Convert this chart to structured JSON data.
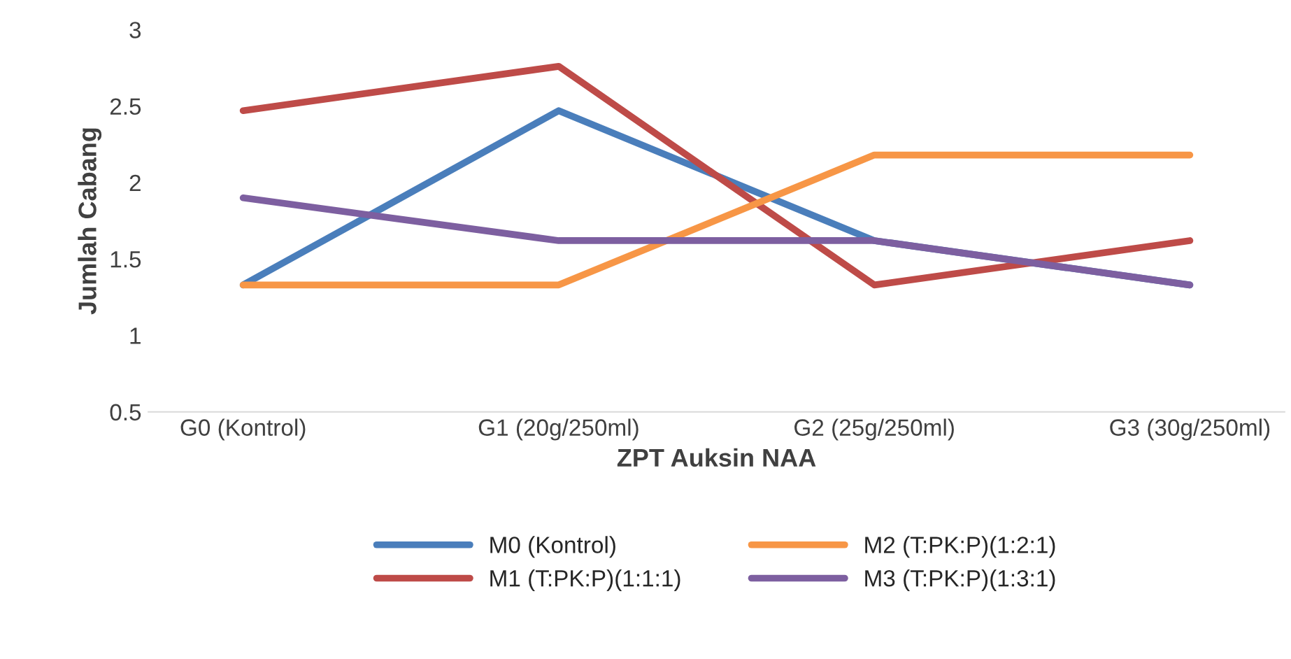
{
  "chart_data": {
    "type": "line",
    "xlabel": "ZPT Auksin NAA",
    "ylabel": "Jumlah Cabang",
    "categories": [
      "G0 (Kontrol)",
      "G1 (20g/250ml)",
      "G2 (25g/250ml)",
      "G3 (30g/250ml)"
    ],
    "series": [
      {
        "name": "M0 (Kontrol)",
        "color": "#4a7ebb",
        "values": [
          1.33,
          2.47,
          1.62,
          1.33
        ]
      },
      {
        "name": "M1 (T:PK:P)(1:1:1)",
        "color": "#be4b48",
        "values": [
          2.47,
          2.76,
          1.33,
          1.62
        ]
      },
      {
        "name": "M2 (T:PK:P)(1:2:1)",
        "color": "#f79646",
        "values": [
          1.33,
          1.33,
          2.18,
          2.18
        ]
      },
      {
        "name": "M3 (T:PK:P)(1:3:1)",
        "color": "#7d5fa0",
        "values": [
          1.9,
          1.62,
          1.62,
          1.33
        ]
      }
    ],
    "ylim": [
      0.5,
      3
    ],
    "yticks": [
      0.5,
      1,
      1.5,
      2,
      2.5,
      3
    ],
    "grid": false,
    "legend": "bottom",
    "marker": "none",
    "line_style": "solid"
  }
}
